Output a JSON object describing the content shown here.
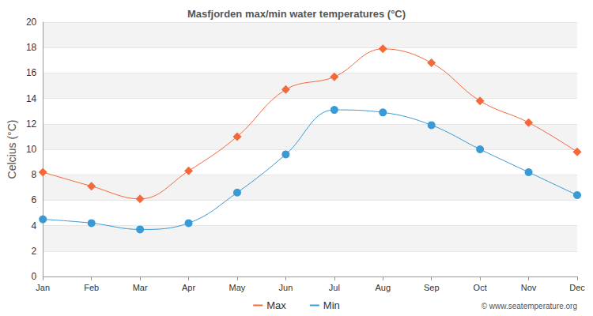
{
  "chart_data": {
    "type": "line",
    "title": "Masfjorden max/min water temperatures (°C)",
    "y_label": "Celcius (°C)",
    "annotations": [
      "© www.seatemperature.org"
    ],
    "categories": [
      "Jan",
      "Feb",
      "Mar",
      "Apr",
      "May",
      "Jun",
      "Jul",
      "Aug",
      "Sep",
      "Oct",
      "Nov",
      "Dec"
    ],
    "series": [
      {
        "name": "Max",
        "color": "#f4683a",
        "marker": "diamond",
        "values": [
          8.2,
          7.1,
          6.1,
          8.3,
          11.0,
          14.7,
          15.7,
          17.9,
          16.8,
          13.8,
          12.1,
          9.8
        ]
      },
      {
        "name": "Min",
        "color": "#3a9ad4",
        "marker": "circle",
        "values": [
          4.5,
          4.2,
          3.7,
          4.2,
          6.6,
          9.6,
          13.1,
          12.9,
          11.9,
          10.0,
          8.2,
          6.4
        ]
      }
    ],
    "ylim": [
      0,
      20
    ],
    "yticks": [
      0,
      2,
      4,
      6,
      8,
      10,
      12,
      14,
      16,
      18,
      20
    ],
    "grid": true,
    "legend": "bottom"
  }
}
